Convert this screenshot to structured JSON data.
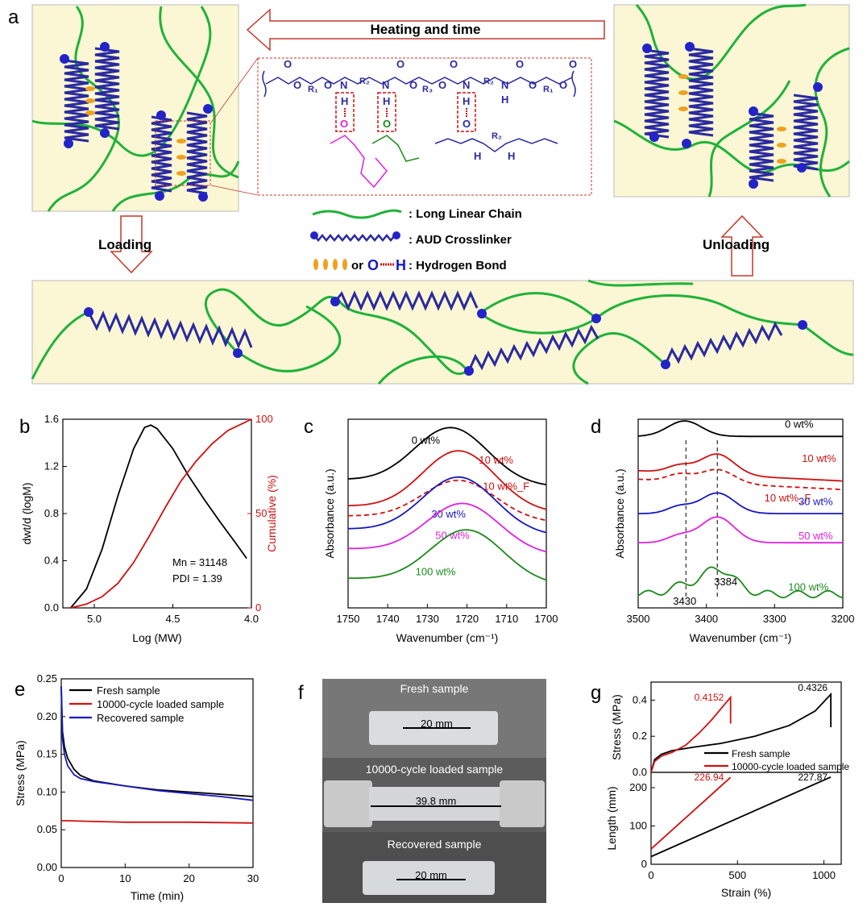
{
  "panel_labels": {
    "a": "a",
    "b": "b",
    "c": "c",
    "d": "d",
    "e": "e",
    "f": "f",
    "g": "g"
  },
  "panel_a": {
    "arrow_top": "Heating and time",
    "loading": "Loading",
    "unloading": "Unloading",
    "legend": {
      "chain": ": Long Linear Chain",
      "crosslinker": ": AUD Crosslinker",
      "or": "or",
      "o_letter": "O",
      "h_letter": "H",
      "hbond": ": Hydrogen Bond"
    },
    "chem": {
      "O": "O",
      "N": "N",
      "H": "H",
      "R1": "R₁",
      "R2": "R₂",
      "R3": "R₃"
    },
    "colors": {
      "chain": "#1fb23a",
      "crosslinker": "#2a2aa0",
      "bead": "#2323c8",
      "bg": "#fbf7d4",
      "hbond": "#f0a020",
      "frame": "#c0392b"
    }
  },
  "chart_b": {
    "type": "line",
    "xlabel": "Log (MW)",
    "ylabel_left": "dwt/d (logM)",
    "ylabel_right": "Cumulative (%)",
    "xlim": [
      5.2,
      4.0
    ],
    "ylim_left": [
      0.0,
      1.6
    ],
    "ylim_right": [
      0,
      100
    ],
    "x_ticks": [
      "5.0",
      "4.5",
      "4.0"
    ],
    "y_left_ticks": [
      "0.0",
      "0.4",
      "0.8",
      "1.2",
      "1.6"
    ],
    "y_right_ticks": [
      "0",
      "50",
      "100"
    ],
    "annotation_mn": "Mn = 31148",
    "annotation_pdi": "PDI = 1.39",
    "series": [
      {
        "axis": "left",
        "color": "#000000",
        "x": [
          5.15,
          5.05,
          4.95,
          4.85,
          4.75,
          4.68,
          4.64,
          4.6,
          4.5,
          4.4,
          4.3,
          4.2,
          4.1,
          4.03
        ],
        "y": [
          0.0,
          0.16,
          0.5,
          0.95,
          1.35,
          1.53,
          1.55,
          1.52,
          1.35,
          1.12,
          0.92,
          0.73,
          0.55,
          0.42
        ]
      },
      {
        "axis": "right",
        "color": "#d01010",
        "x": [
          5.15,
          5.05,
          4.95,
          4.85,
          4.75,
          4.65,
          4.55,
          4.45,
          4.35,
          4.25,
          4.15,
          4.05,
          4.0
        ],
        "y": [
          0,
          2,
          6,
          13,
          24,
          38,
          53,
          67,
          78,
          87,
          94,
          98,
          100
        ]
      }
    ]
  },
  "chart_c": {
    "type": "line",
    "xlabel": "Wavenumber (cm⁻¹)",
    "ylabel": "Absorbance (a.u.)",
    "xlim": [
      1750,
      1700
    ],
    "x_ticks": [
      "1750",
      "1740",
      "1730",
      "1720",
      "1710",
      "1700"
    ],
    "series": [
      {
        "name": "0 wt%",
        "color": "#000000",
        "peak": 1724,
        "base": 0.78,
        "height": 0.34,
        "dash": false
      },
      {
        "name": "10 wt%",
        "color": "#d01010",
        "peak": 1722,
        "base": 0.62,
        "height": 0.36,
        "dash": false
      },
      {
        "name": "10 wt%_F",
        "color": "#d01010",
        "peak": 1722,
        "base": 0.56,
        "height": 0.24,
        "dash": true
      },
      {
        "name": "30 wt%",
        "color": "#1818c0",
        "peak": 1722,
        "base": 0.48,
        "height": 0.34,
        "dash": false
      },
      {
        "name": "50 wt%",
        "color": "#e020e0",
        "peak": 1721,
        "base": 0.36,
        "height": 0.3,
        "dash": false
      },
      {
        "name": "100 wt%",
        "color": "#1a8a1a",
        "peak": 1720,
        "base": 0.18,
        "height": 0.32,
        "dash": false
      }
    ]
  },
  "chart_d": {
    "type": "line",
    "xlabel": "Wavenumber (cm⁻¹)",
    "ylabel": "Absorbance (a.u.)",
    "xlim": [
      3500,
      3200
    ],
    "x_ticks": [
      "3500",
      "3400",
      "3300",
      "3200"
    ],
    "vlines": [
      "3430",
      "3384"
    ],
    "series": [
      {
        "name": "0 wt%",
        "color": "#000000",
        "dash": false
      },
      {
        "name": "10 wt%",
        "color": "#d01010",
        "dash": false
      },
      {
        "name": "10 wt%_F",
        "color": "#d01010",
        "dash": true
      },
      {
        "name": "30 wt%",
        "color": "#1818c0",
        "dash": false
      },
      {
        "name": "50 wt%",
        "color": "#e020e0",
        "dash": false
      },
      {
        "name": "100 wt%",
        "color": "#1a8a1a",
        "dash": false
      }
    ]
  },
  "chart_e": {
    "type": "line",
    "xlabel": "Time (min)",
    "ylabel": "Stress (MPa)",
    "xlim": [
      0,
      30
    ],
    "ylim": [
      0.0,
      0.25
    ],
    "x_ticks": [
      "0",
      "10",
      "20",
      "30"
    ],
    "y_ticks": [
      "0.00",
      "0.05",
      "0.10",
      "0.15",
      "0.20",
      "0.25"
    ],
    "series": [
      {
        "name": "Fresh sample",
        "color": "#000000",
        "x": [
          0,
          0.2,
          0.5,
          1,
          2,
          3,
          5,
          10,
          15,
          20,
          25,
          30
        ],
        "y": [
          0.24,
          0.18,
          0.16,
          0.145,
          0.13,
          0.122,
          0.115,
          0.108,
          0.103,
          0.1,
          0.097,
          0.094
        ]
      },
      {
        "name": "10000-cycle loaded sample",
        "color": "#d01010",
        "x": [
          0,
          0.3,
          1,
          5,
          10,
          20,
          30
        ],
        "y": [
          0.062,
          0.062,
          0.062,
          0.061,
          0.06,
          0.06,
          0.059
        ]
      },
      {
        "name": "Recovered sample",
        "color": "#1818c0",
        "x": [
          0,
          0.2,
          0.5,
          1,
          2,
          3,
          5,
          10,
          15,
          20,
          25,
          30
        ],
        "y": [
          0.24,
          0.17,
          0.15,
          0.135,
          0.123,
          0.118,
          0.114,
          0.108,
          0.102,
          0.098,
          0.094,
          0.089
        ]
      }
    ]
  },
  "panel_f": {
    "fresh": "Fresh sample",
    "fresh_len": "20 mm",
    "loaded": "10000-cycle loaded sample",
    "loaded_len": "39.8 mm",
    "recovered": "Recovered sample",
    "recovered_len": "20 mm"
  },
  "chart_g": {
    "type": "line",
    "xlabel": "Strain (%)",
    "top": {
      "ylabel": "Stress (MPa)",
      "ylim": [
        0.0,
        0.5
      ],
      "y_ticks": [
        "0.0",
        "0.2",
        "0.4"
      ],
      "label_red": "0.4152",
      "label_black": "0.4326",
      "series": [
        {
          "name": "Fresh sample",
          "color": "#000000",
          "x": [
            0,
            20,
            60,
            120,
            250,
            400,
            600,
            800,
            950,
            1040,
            1040
          ],
          "y": [
            0,
            0.07,
            0.1,
            0.12,
            0.14,
            0.16,
            0.2,
            0.26,
            0.34,
            0.4326,
            0.25
          ]
        },
        {
          "name": "10000-cycle loaded sample",
          "color": "#d01010",
          "x": [
            0,
            20,
            60,
            120,
            200,
            280,
            350,
            420,
            460,
            460
          ],
          "y": [
            0,
            0.06,
            0.09,
            0.11,
            0.15,
            0.22,
            0.29,
            0.37,
            0.4152,
            0.27
          ]
        }
      ]
    },
    "bottom": {
      "ylabel": "Length (mm)",
      "ylim": [
        0,
        240
      ],
      "y_ticks": [
        "0",
        "100",
        "200"
      ],
      "label_red": "226.94",
      "label_black": "227.87",
      "series": [
        {
          "name": "Fresh sample",
          "color": "#000000",
          "x": [
            0,
            1040
          ],
          "y": [
            20,
            227.87
          ]
        },
        {
          "name": "10000-cycle loaded sample",
          "color": "#d01010",
          "x": [
            0,
            460
          ],
          "y": [
            39.8,
            226.94
          ]
        }
      ]
    },
    "x_ticks": [
      "0",
      "500",
      "1000"
    ],
    "xlim": [
      0,
      1100
    ]
  }
}
